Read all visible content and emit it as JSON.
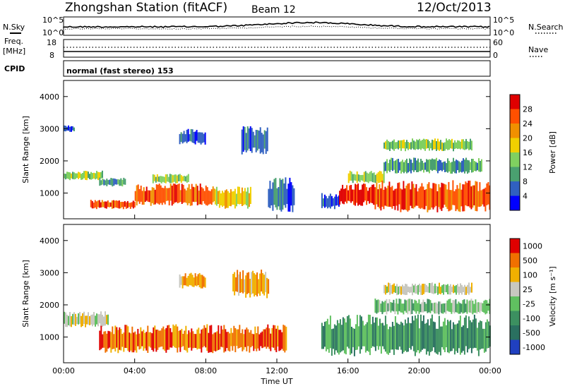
{
  "header": {
    "station": "Zhongshan Station (fitACF)",
    "beam": "Beam 12",
    "date": "12/Oct/2013"
  },
  "strip_labels": {
    "nsky": "N.Sky",
    "nsky_max": "10^5",
    "nsky_min": "10^0",
    "nsearch": "N.Search",
    "nsearch_max": "10^5",
    "nsearch_min": "10^0",
    "freq_line1": "Freq.",
    "freq_line2": "[MHz]",
    "freq_max": "18",
    "freq_min": "8",
    "nave": "Nave",
    "nave_max": "60",
    "nave_min": "0",
    "cpid": "CPID",
    "cpid_text": "normal (fast stereo) 153"
  },
  "chart_data": [
    {
      "type": "heatmap",
      "name": "power-panel",
      "ylabel": "Slant Range [km]",
      "xlabel": "",
      "ylim": [
        200,
        4500
      ],
      "xlim": [
        0,
        24
      ],
      "y_ticks": [
        "1000",
        "2000",
        "3000",
        "4000"
      ],
      "y_tick_values": [
        1000,
        2000,
        3000,
        4000
      ],
      "colorbar": {
        "label": "Power [dB]",
        "ticks": [
          "4",
          "8",
          "12",
          "16",
          "20",
          "24",
          "28"
        ],
        "colors": [
          "#0000ff",
          "#3060c0",
          "#4aa070",
          "#80d060",
          "#f0d000",
          "#f09000",
          "#ff5000",
          "#e00000"
        ]
      },
      "regions": [
        {
          "t0": 0.0,
          "t1": 2.2,
          "r0": 1400,
          "r1": 1700,
          "level": 3
        },
        {
          "t0": 0.0,
          "t1": 0.6,
          "r0": 2900,
          "r1": 3100,
          "level": 1
        },
        {
          "t0": 1.5,
          "t1": 4.0,
          "r0": 500,
          "r1": 800,
          "level": 6
        },
        {
          "t0": 2.0,
          "t1": 3.5,
          "r0": 1200,
          "r1": 1500,
          "level": 2
        },
        {
          "t0": 4.0,
          "t1": 8.5,
          "r0": 600,
          "r1": 1300,
          "level": 6
        },
        {
          "t0": 5.0,
          "t1": 7.0,
          "r0": 1300,
          "r1": 1600,
          "level": 3
        },
        {
          "t0": 6.5,
          "t1": 8.0,
          "r0": 2500,
          "r1": 3000,
          "level": 1
        },
        {
          "t0": 8.5,
          "t1": 10.5,
          "r0": 500,
          "r1": 1200,
          "level": 4
        },
        {
          "t0": 10.0,
          "t1": 11.5,
          "r0": 2200,
          "r1": 3100,
          "level": 1
        },
        {
          "t0": 11.5,
          "t1": 13.0,
          "r0": 400,
          "r1": 1500,
          "level": 1
        },
        {
          "t0": 14.5,
          "t1": 15.5,
          "r0": 500,
          "r1": 1000,
          "level": 1
        },
        {
          "t0": 15.5,
          "t1": 17.5,
          "r0": 600,
          "r1": 1300,
          "level": 7
        },
        {
          "t0": 16.0,
          "t1": 18.0,
          "r0": 1300,
          "r1": 1700,
          "level": 3
        },
        {
          "t0": 17.5,
          "t1": 24.0,
          "r0": 400,
          "r1": 1400,
          "level": 6
        },
        {
          "t0": 18.0,
          "t1": 23.5,
          "r0": 1600,
          "r1": 2100,
          "level": 2
        },
        {
          "t0": 18.0,
          "t1": 23.0,
          "r0": 2300,
          "r1": 2700,
          "level": 3
        }
      ]
    },
    {
      "type": "heatmap",
      "name": "velocity-panel",
      "ylabel": "Slant Range [km]",
      "xlabel": "Time UT",
      "ylim": [
        200,
        4500
      ],
      "xlim": [
        0,
        24
      ],
      "y_ticks": [
        "1000",
        "2000",
        "3000",
        "4000"
      ],
      "y_tick_values": [
        1000,
        2000,
        3000,
        4000
      ],
      "x_ticks": [
        "00:00",
        "04:00",
        "08:00",
        "12:00",
        "16:00",
        "20:00",
        "00:00"
      ],
      "x_tick_values": [
        0,
        4,
        8,
        12,
        16,
        20,
        24
      ],
      "colorbar": {
        "label": "Velocity [m s⁻¹]",
        "ticks": [
          "1000",
          "500",
          "100",
          "25",
          "-25",
          "-100",
          "-500",
          "-1000"
        ],
        "colors": [
          "#2040c0",
          "#2a7060",
          "#3c9060",
          "#60c060",
          "#c8c8c0",
          "#f0b000",
          "#f07000",
          "#e00000"
        ]
      },
      "regions": [
        {
          "t0": 0.0,
          "t1": 2.5,
          "r0": 1300,
          "r1": 1800,
          "level": 4
        },
        {
          "t0": 2.0,
          "t1": 12.5,
          "r0": 500,
          "r1": 1400,
          "level": 6
        },
        {
          "t0": 6.5,
          "t1": 8.0,
          "r0": 2500,
          "r1": 3000,
          "level": 5
        },
        {
          "t0": 9.5,
          "t1": 11.5,
          "r0": 2200,
          "r1": 3100,
          "level": 5
        },
        {
          "t0": 14.5,
          "t1": 24.0,
          "r0": 400,
          "r1": 1700,
          "level": 2
        },
        {
          "t0": 17.5,
          "t1": 24.0,
          "r0": 1700,
          "r1": 2200,
          "level": 3
        },
        {
          "t0": 18.0,
          "t1": 23.0,
          "r0": 2300,
          "r1": 2700,
          "level": 4
        }
      ]
    }
  ]
}
